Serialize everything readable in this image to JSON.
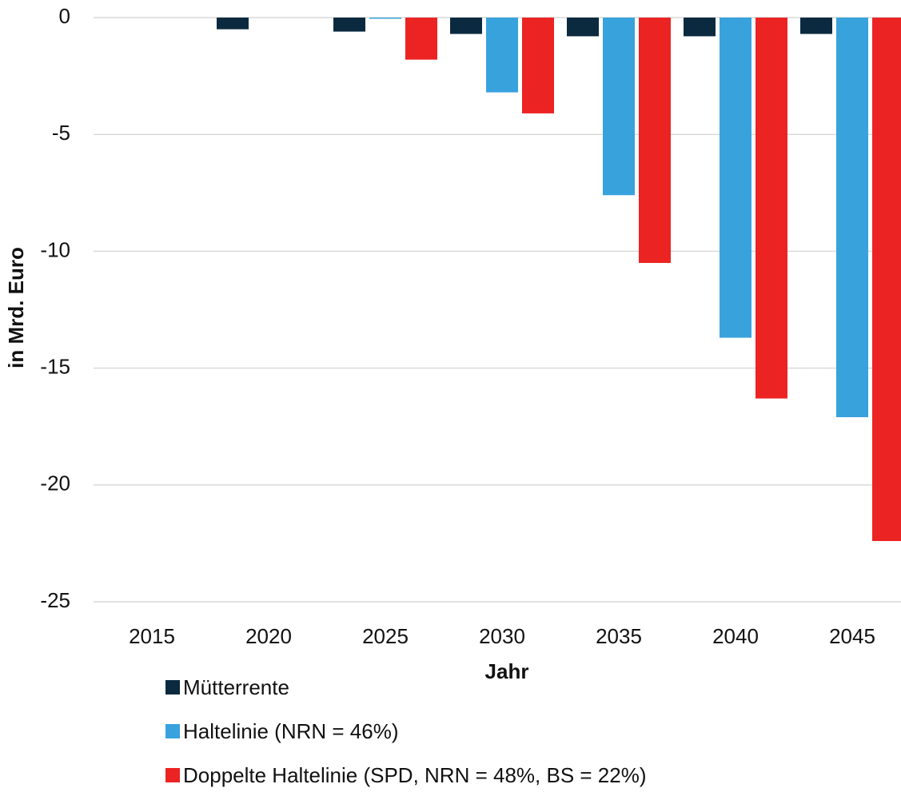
{
  "chart_data": {
    "type": "bar",
    "xlabel": "Jahr",
    "ylabel": "in Mrd. Euro",
    "categories": [
      "2015",
      "2020",
      "2025",
      "2030",
      "2035",
      "2040",
      "2045"
    ],
    "series": [
      {
        "name": "Mütterrente",
        "color": "#0b2a3f",
        "values": [
          0,
          -0.5,
          -0.6,
          -0.7,
          -0.8,
          -0.8,
          -0.7
        ]
      },
      {
        "name": "Haltelinie (NRN = 46%)",
        "color": "#38a2dd",
        "values": [
          0,
          0,
          -0.05,
          -3.2,
          -7.6,
          -13.7,
          -17.1
        ]
      },
      {
        "name": "Doppelte Haltelinie (SPD, NRN = 48%, BS = 22%)",
        "color": "#ec2323",
        "values": [
          0,
          0,
          -1.8,
          -4.1,
          -10.5,
          -16.3,
          -22.4
        ]
      }
    ],
    "ylim": [
      -25,
      0
    ],
    "yticks": [
      0,
      -5,
      -10,
      -15,
      -20,
      -25
    ],
    "grid": true,
    "legend": "bottom"
  }
}
